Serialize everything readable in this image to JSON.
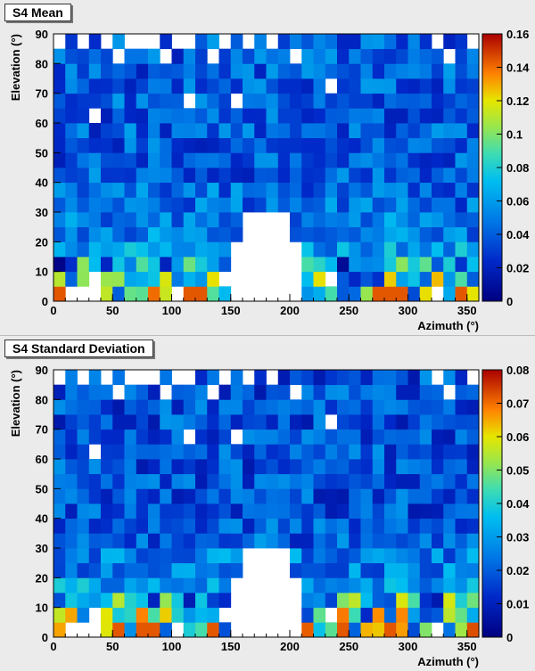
{
  "chart_data": [
    {
      "type": "heatmap",
      "title": "S4 Mean",
      "xlabel": "Azimuth (°)",
      "ylabel": "Elevation (°)",
      "xlim": [
        0,
        360
      ],
      "ylim": [
        0,
        90
      ],
      "x_ticks": [
        "0",
        "50",
        "100",
        "150",
        "200",
        "250",
        "300",
        "350"
      ],
      "y_ticks": [
        "0",
        "10",
        "20",
        "30",
        "40",
        "50",
        "60",
        "70",
        "80",
        "90"
      ],
      "z_range": [
        0,
        0.16
      ],
      "z_ticks": [
        "0",
        "0.02",
        "0.04",
        "0.06",
        "0.08",
        "0.1",
        "0.12",
        "0.14",
        "0.16"
      ],
      "bin_deg": 10,
      "row_values_by_elevation": [
        {
          "elevation": "0-5",
          "value": 0.09
        },
        {
          "elevation": "5-10",
          "value": 0.08
        },
        {
          "elevation": "10-20",
          "value": 0.06
        },
        {
          "elevation": "20-30",
          "value": 0.05
        },
        {
          "elevation": "30-40",
          "value": 0.045
        },
        {
          "elevation": "40-90",
          "value": 0.04
        }
      ]
    },
    {
      "type": "heatmap",
      "title": "S4 Standard Deviation",
      "xlabel": "Azimuth (°)",
      "ylabel": "Elevation (°)",
      "xlim": [
        0,
        360
      ],
      "ylim": [
        0,
        90
      ],
      "x_ticks": [
        "0",
        "50",
        "100",
        "150",
        "200",
        "250",
        "300",
        "350"
      ],
      "y_ticks": [
        "0",
        "10",
        "20",
        "30",
        "40",
        "50",
        "60",
        "70",
        "80",
        "90"
      ],
      "z_range": [
        0,
        0.08
      ],
      "z_ticks": [
        "0",
        "0.01",
        "0.02",
        "0.03",
        "0.04",
        "0.05",
        "0.06",
        "0.07",
        "0.08"
      ],
      "bin_deg": 10,
      "row_values_by_elevation": [
        {
          "elevation": "0-5",
          "value": 0.045
        },
        {
          "elevation": "5-10",
          "value": 0.04
        },
        {
          "elevation": "10-20",
          "value": 0.03
        },
        {
          "elevation": "20-30",
          "value": 0.025
        },
        {
          "elevation": "30-40",
          "value": 0.02
        },
        {
          "elevation": "40-90",
          "value": 0.018
        }
      ]
    }
  ]
}
